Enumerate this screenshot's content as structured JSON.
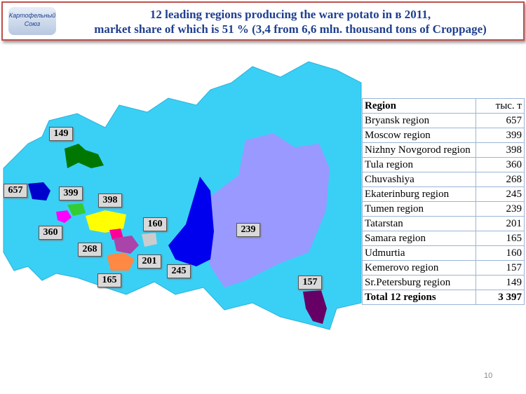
{
  "header": {
    "logo": [
      "Картофельный",
      "Союз"
    ],
    "title": [
      "12 leading regions producing the ware potato in в 2011,",
      "market share of which is 51 % (3,4 from 6,6 mln. thousand tons of Croppage)"
    ]
  },
  "map": {
    "labels": [
      149,
      657,
      399,
      398,
      360,
      160,
      268,
      201,
      165,
      245,
      239,
      157
    ]
  },
  "table": {
    "header": [
      "Region",
      "тыс. т"
    ],
    "rows": [
      [
        "Bryansk region",
        657
      ],
      [
        "Moscow region",
        399
      ],
      [
        "Nizhny Novgorod region",
        398
      ],
      [
        "Tula region",
        360
      ],
      [
        "Chuvashiya",
        268
      ],
      [
        "Ekaterinburg region",
        245
      ],
      [
        "Tumen region",
        239
      ],
      [
        "Tatarstan",
        201
      ],
      [
        "Samara region",
        165
      ],
      [
        "Udmurtia",
        160
      ],
      [
        "Kemerovo region",
        157
      ],
      [
        "Sr.Petersburg region",
        149
      ]
    ],
    "total": [
      "Total 12 regions",
      "3 397"
    ]
  },
  "page_number": 10
}
